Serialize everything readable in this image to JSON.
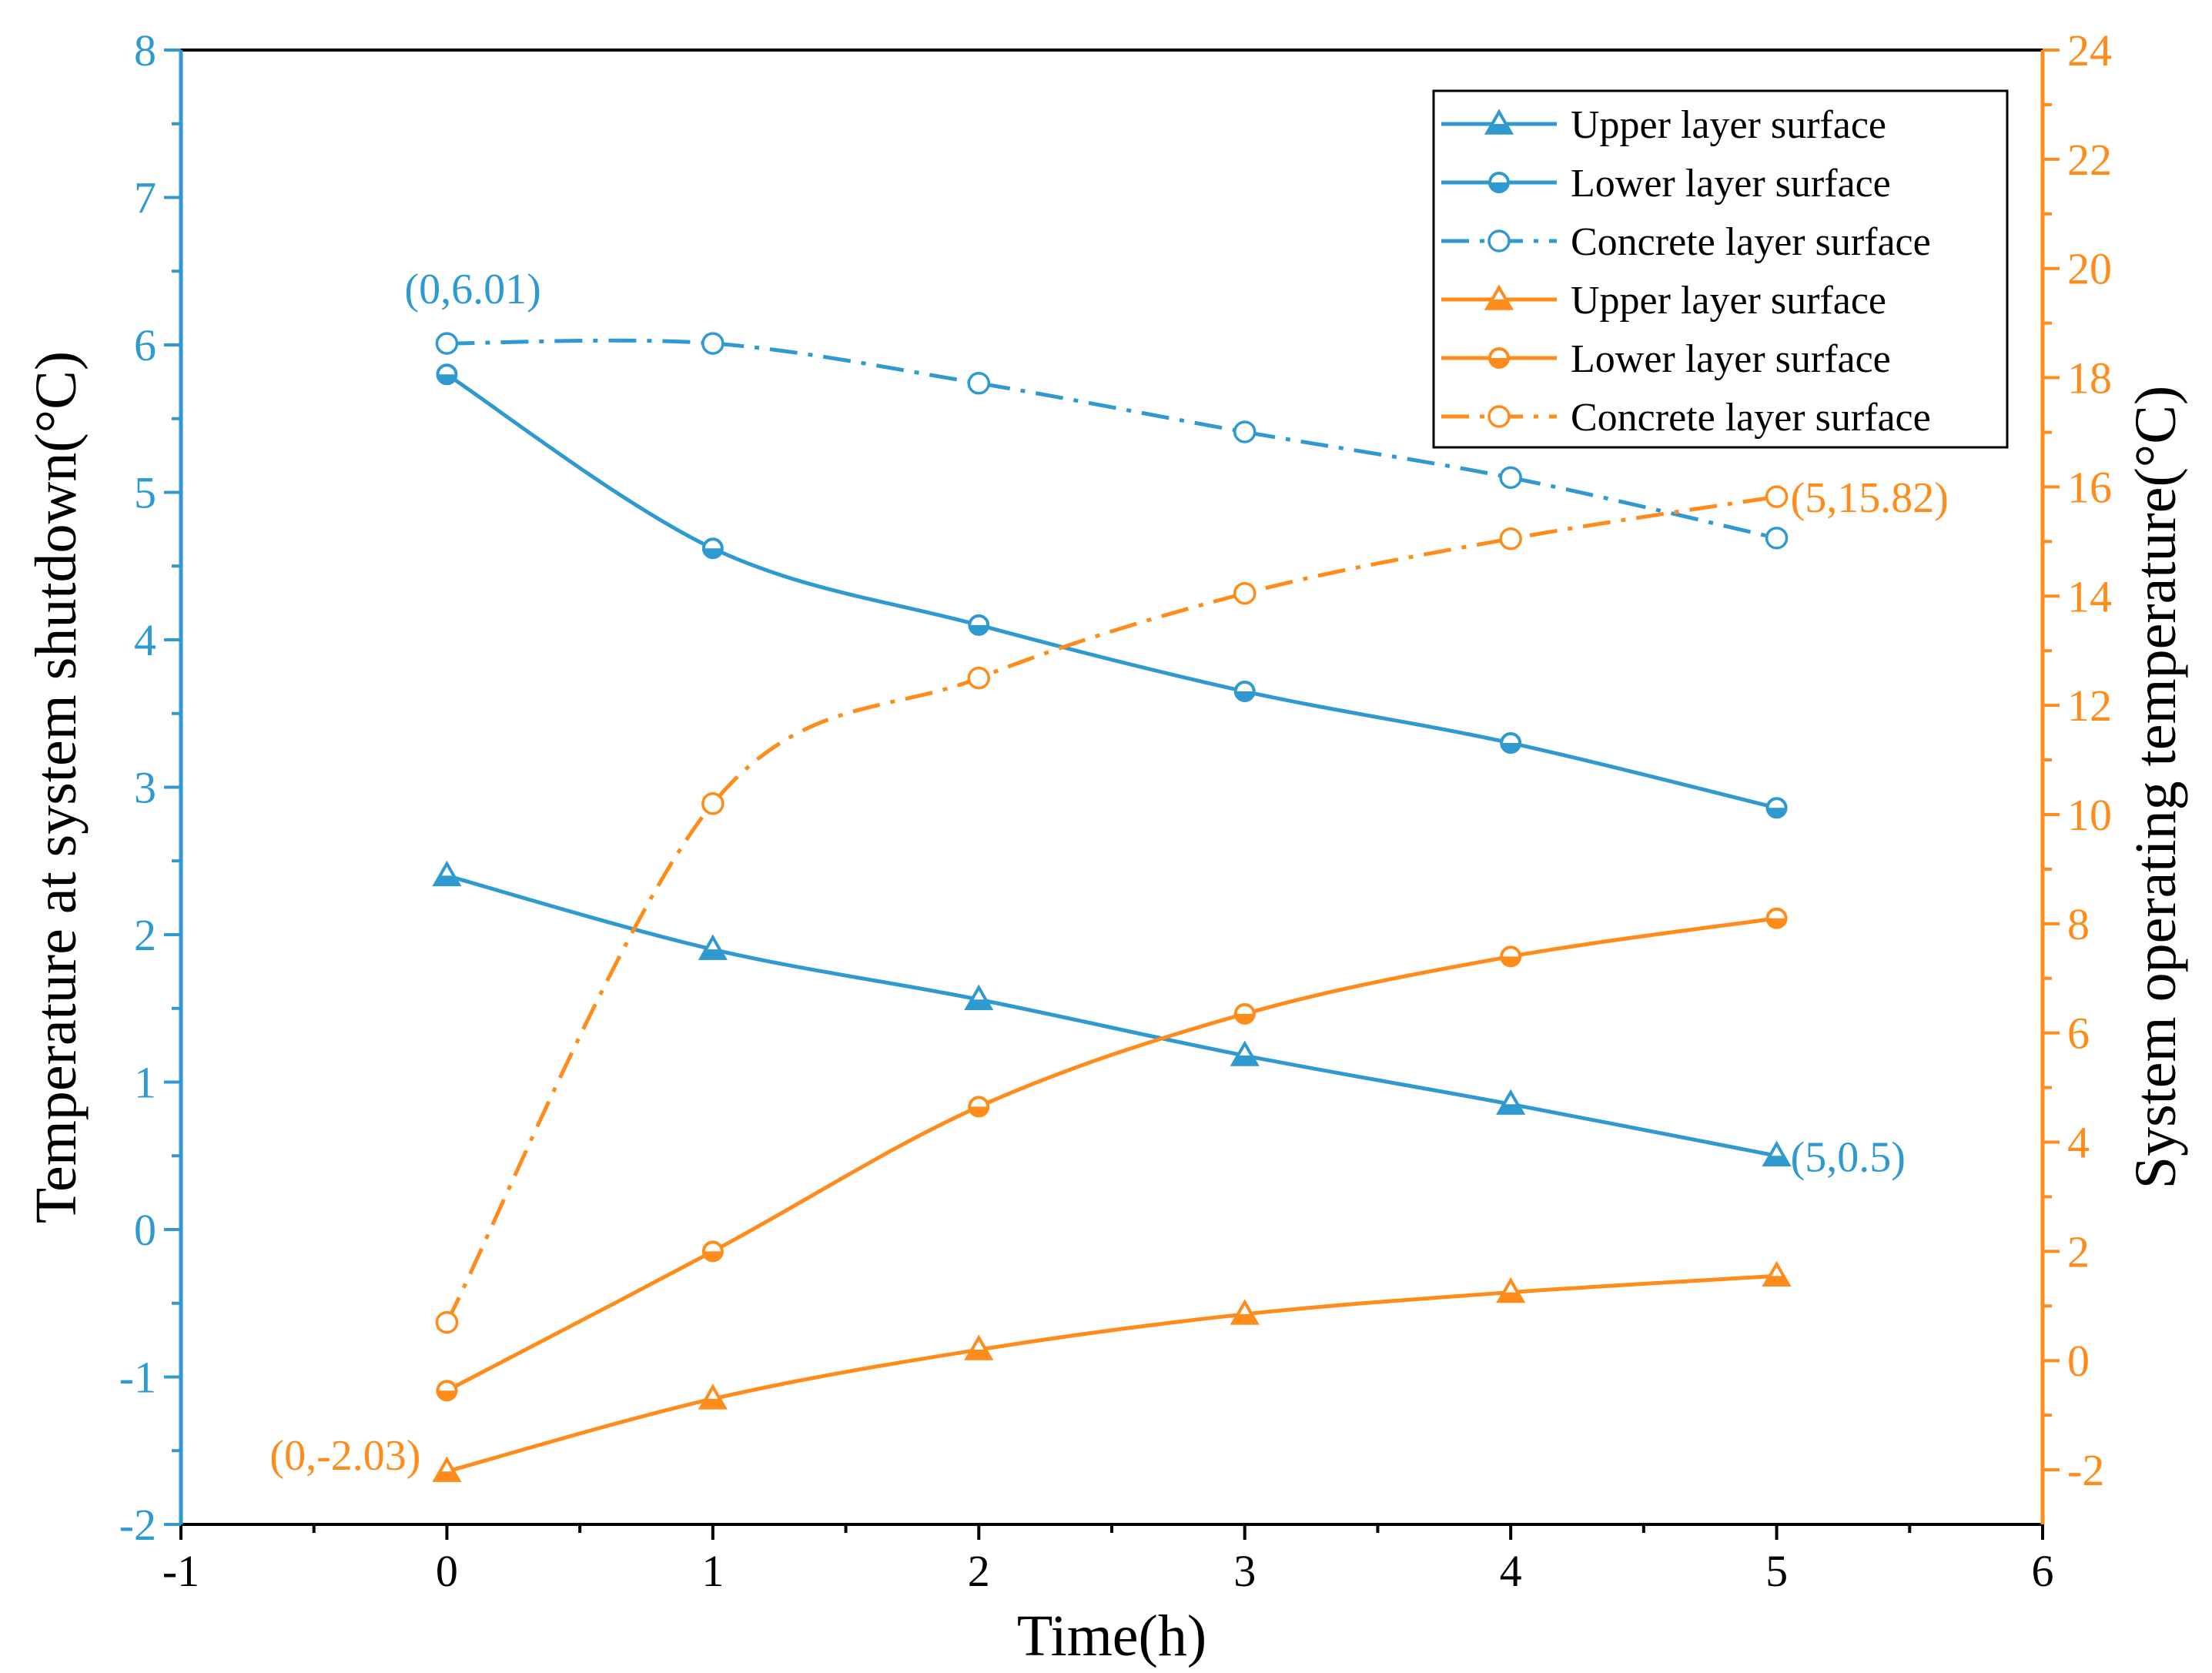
{
  "colors": {
    "left_axis": "#2E9AD0",
    "right_axis": "#FF8C1A",
    "frame": "#000000"
  },
  "chart_data": {
    "type": "line",
    "xlabel": "Time(h)",
    "ylabel_left": "Temperature at system shutdown(°C)",
    "ylabel_right": "System operating temperature(°C)",
    "xlim": [
      -1,
      6
    ],
    "ylim_left": [
      -2,
      8
    ],
    "ylim_right": [
      -3,
      24
    ],
    "x_ticks": [
      "-1",
      "0",
      "1",
      "2",
      "3",
      "4",
      "5",
      "6"
    ],
    "y_left_ticks": [
      "-2",
      "-1",
      "0",
      "1",
      "2",
      "3",
      "4",
      "5",
      "6",
      "7",
      "8"
    ],
    "y_right_ticks": [
      "-2",
      "0",
      "2",
      "4",
      "6",
      "8",
      "10",
      "12",
      "14",
      "16",
      "18",
      "20",
      "22",
      "24"
    ],
    "x": [
      0,
      1,
      2,
      3,
      4,
      5
    ],
    "grid": false,
    "legend_position": "top-right",
    "series": [
      {
        "name": "Upper layer surface",
        "axis": "left",
        "color": "#2E9AD0",
        "marker": "triangle",
        "line": "solid",
        "values": [
          2.4,
          1.9,
          1.56,
          1.18,
          0.85,
          0.5
        ]
      },
      {
        "name": "Lower layer surface",
        "axis": "left",
        "color": "#2E9AD0",
        "marker": "half-circle",
        "line": "solid",
        "values": [
          5.8,
          4.62,
          4.1,
          3.65,
          3.3,
          2.86
        ]
      },
      {
        "name": "Concrete layer surface",
        "axis": "left",
        "color": "#2E9AD0",
        "marker": "open-circle",
        "line": "dashdot",
        "values": [
          6.01,
          6.01,
          5.74,
          5.41,
          5.1,
          4.69
        ]
      },
      {
        "name": "Upper layer surface",
        "axis": "right",
        "color": "#FF8C1A",
        "marker": "triangle",
        "line": "solid",
        "values": [
          -2.03,
          -0.7,
          0.2,
          0.85,
          1.25,
          1.55
        ]
      },
      {
        "name": "Lower layer surface",
        "axis": "right",
        "color": "#FF8C1A",
        "marker": "half-circle",
        "line": "solid",
        "values": [
          -0.55,
          2.0,
          4.65,
          6.35,
          7.4,
          8.1
        ]
      },
      {
        "name": "Concrete layer surface",
        "axis": "right",
        "color": "#FF8C1A",
        "marker": "open-circle",
        "line": "dashdot",
        "values": [
          0.7,
          10.2,
          12.5,
          14.05,
          15.05,
          15.82
        ]
      }
    ],
    "annotations": [
      {
        "text": "(0,6.01)",
        "axis": "left",
        "color": "#2E9AD0",
        "x": 0,
        "y": 6.01
      },
      {
        "text": "(5,0.5)",
        "axis": "left",
        "color": "#2E9AD0",
        "x": 5,
        "y": 0.5
      },
      {
        "text": "(0,-2.03)",
        "axis": "right",
        "color": "#FF8C1A",
        "x": 0,
        "y": -2.03
      },
      {
        "text": "(5,15.82)",
        "axis": "right",
        "color": "#FF8C1A",
        "x": 5,
        "y": 15.82
      }
    ]
  }
}
